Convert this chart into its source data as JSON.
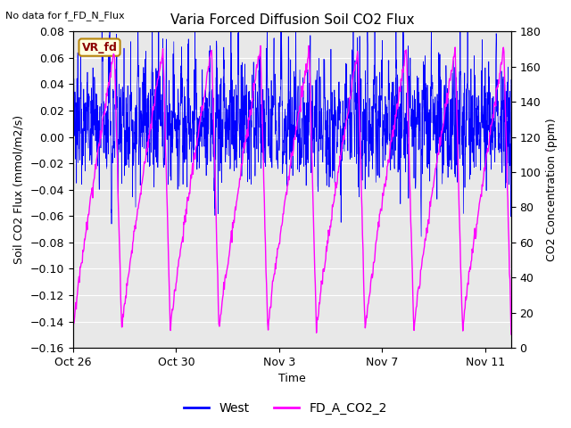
{
  "title": "Varia Forced Diffusion Soil CO2 Flux",
  "no_data_label": "No data for f_FD_N_Flux",
  "vr_fd_label": "VR_fd",
  "xlabel": "Time",
  "ylabel_left": "Soil CO2 Flux (mmol/m2/s)",
  "ylabel_right": "CO2 Concentration (ppm)",
  "ylim_left": [
    -0.16,
    0.08
  ],
  "ylim_right": [
    0,
    180
  ],
  "yticks_left": [
    -0.16,
    -0.14,
    -0.12,
    -0.1,
    -0.08,
    -0.06,
    -0.04,
    -0.02,
    0.0,
    0.02,
    0.04,
    0.06,
    0.08
  ],
  "yticks_right": [
    0,
    20,
    40,
    60,
    80,
    100,
    120,
    140,
    160,
    180
  ],
  "xtick_positions": [
    0,
    4,
    8,
    12,
    16
  ],
  "xtick_labels": [
    "Oct 26",
    "Oct 30",
    "Nov 3",
    "Nov 7",
    "Nov 11"
  ],
  "blue_color": "#0000FF",
  "magenta_color": "#FF00FF",
  "background_color": "#E8E8E8",
  "legend_labels": [
    "West",
    "FD_A_CO2_2"
  ],
  "title_fontsize": 11,
  "label_fontsize": 9,
  "tick_fontsize": 9,
  "n_days": 17,
  "n_points_blue": 2000,
  "n_cycles_mag": 9,
  "mag_high": 170,
  "mag_low": 10,
  "blue_base_mean": 0.008,
  "blue_base_std": 0.018
}
